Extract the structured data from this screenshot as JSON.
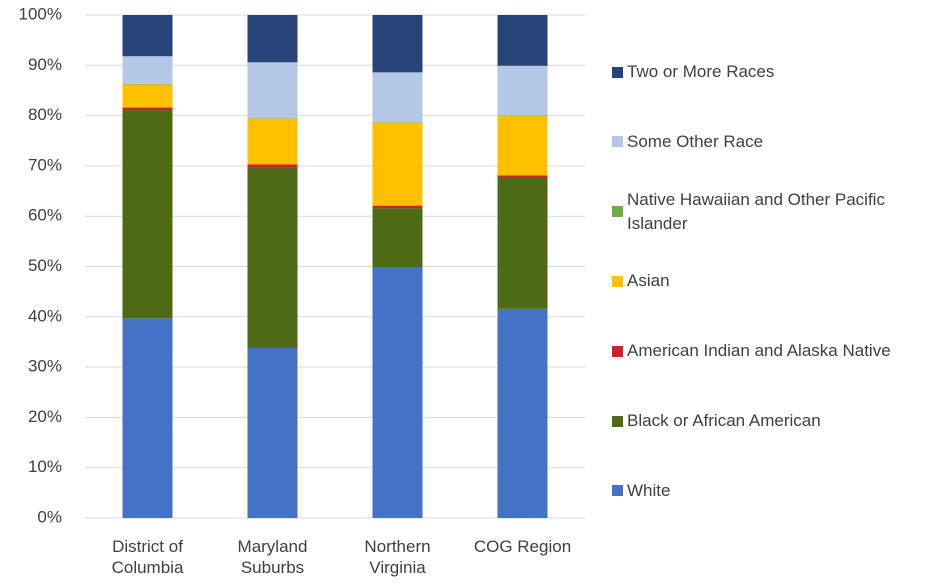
{
  "chart_data": {
    "type": "stacked_bar",
    "categories": [
      "District of Columbia",
      "Maryland Suburbs",
      "Northern Virginia",
      "COG Region"
    ],
    "series": [
      {
        "name": "White",
        "color": "#4472c4",
        "values": [
          39.7,
          33.8,
          49.9,
          41.6
        ]
      },
      {
        "name": "Black or African American",
        "color": "#4e6a14",
        "values": [
          41.4,
          35.8,
          11.7,
          26.0
        ]
      },
      {
        "name": "American Indian and Alaska Native",
        "color": "#d0202a",
        "values": [
          0.5,
          0.7,
          0.5,
          0.5
        ]
      },
      {
        "name": "Asian",
        "color": "#ffc000",
        "values": [
          4.6,
          9.1,
          16.5,
          11.8
        ]
      },
      {
        "name": "Native Hawaiian and Other Pacific Islander",
        "color": "#70ad47",
        "values": [
          0.1,
          0.1,
          0.1,
          0.1
        ]
      },
      {
        "name": "Some Other Race",
        "color": "#b4c7e7",
        "values": [
          5.5,
          11.1,
          9.9,
          9.9
        ]
      },
      {
        "name": "Two or More Races",
        "color": "#264478",
        "values": [
          8.2,
          9.4,
          11.4,
          10.1
        ]
      }
    ],
    "ylim": [
      0,
      100
    ],
    "yticks": [
      {
        "value": 0,
        "label": "0%"
      },
      {
        "value": 10,
        "label": "10%"
      },
      {
        "value": 20,
        "label": "20%"
      },
      {
        "value": 30,
        "label": "30%"
      },
      {
        "value": 40,
        "label": "40%"
      },
      {
        "value": 50,
        "label": "50%"
      },
      {
        "value": 60,
        "label": "60%"
      },
      {
        "value": 70,
        "label": "70%"
      },
      {
        "value": 80,
        "label": "80%"
      },
      {
        "value": 90,
        "label": "90%"
      },
      {
        "value": 100,
        "label": "100%"
      }
    ],
    "grid": true,
    "legend": "right"
  }
}
